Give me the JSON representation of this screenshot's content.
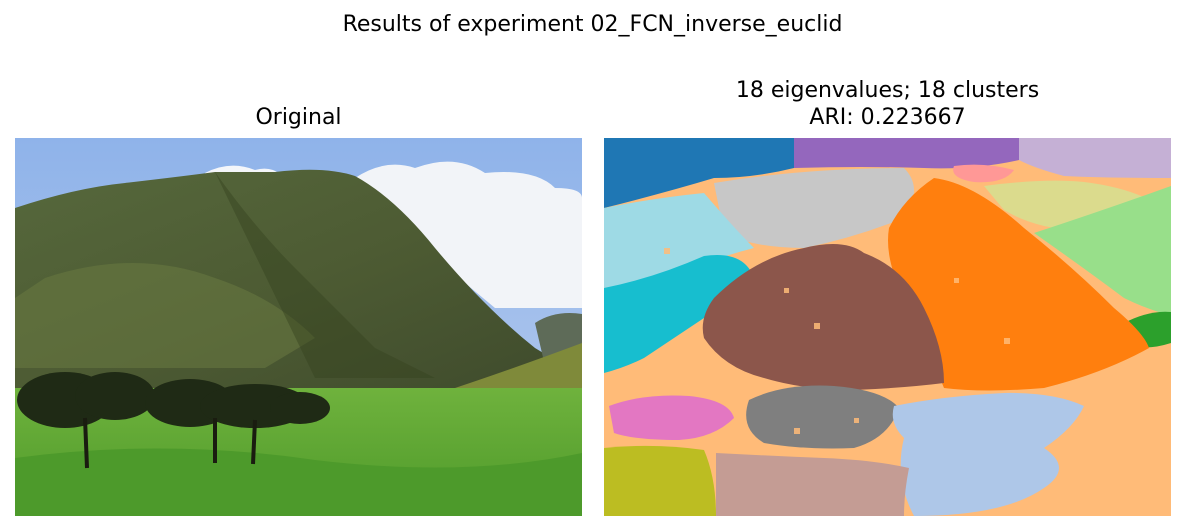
{
  "figure": {
    "suptitle": "Results of experiment 02_FCN_inverse_euclid"
  },
  "panels": {
    "left": {
      "title": "Original"
    },
    "right": {
      "title_line1": "18 eigenvalues; 18 clusters",
      "title_line2": "ARI: 0.223667"
    }
  },
  "chart_data": {
    "type": "image-segmentation",
    "title": "Results of experiment 02_FCN_inverse_euclid",
    "panels": [
      {
        "title": "Original",
        "content": "photograph"
      },
      {
        "title": "18 eigenvalues; 18 clusters / ARI: 0.223667",
        "eigenvalues": 18,
        "clusters": 18,
        "ari": 0.223667
      }
    ]
  },
  "colors": {
    "c_blue": "#1f77b4",
    "c_purple": "#9467bd",
    "c_lavender": "#c5b0d5",
    "c_peach": "#ffbb78",
    "c_orange": "#ff7f0e",
    "c_lightgreen": "#98df8a",
    "c_khaki": "#dbdb8d",
    "c_grey": "#c7c7c7",
    "c_lightcyan": "#9edae5",
    "c_cyan": "#17becf",
    "c_brown": "#8c564b",
    "c_green": "#2ca02c",
    "c_pink": "#e377c2",
    "c_darkgrey": "#7f7f7f",
    "c_lightblue": "#aec7e8",
    "c_olive": "#bcbd22",
    "c_rosybrown": "#c49c94",
    "c_lightpink": "#ff9896"
  }
}
